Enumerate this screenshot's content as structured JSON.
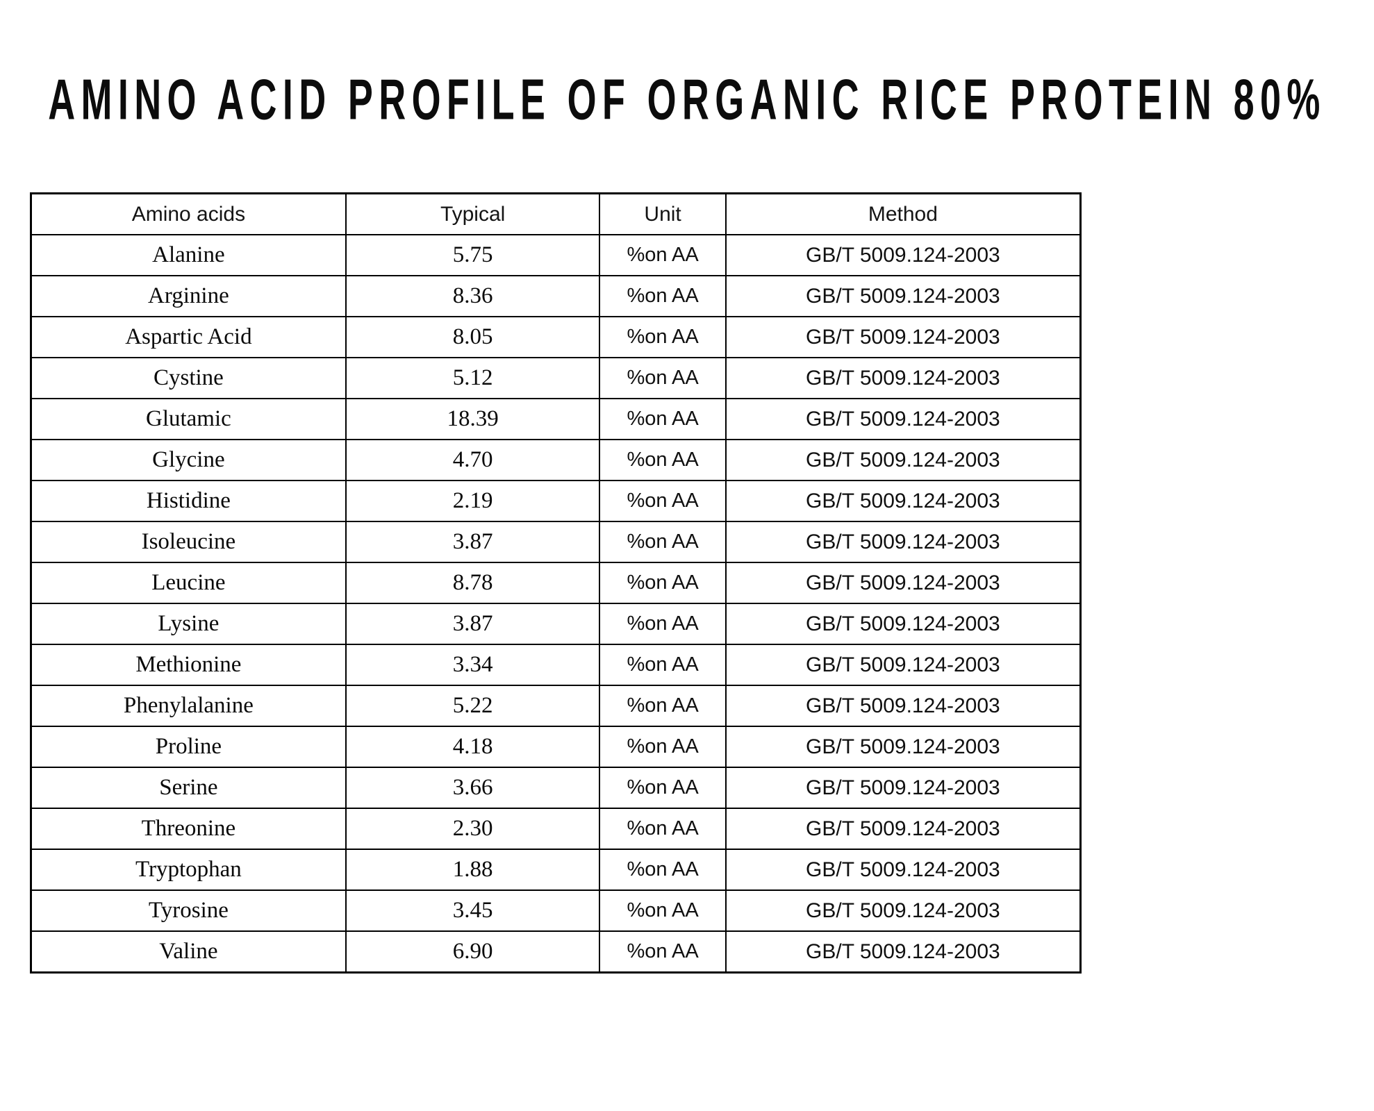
{
  "title": "AMINO ACID PROFILE OF ORGANIC RICE PROTEIN 80%",
  "table": {
    "headers": [
      "Amino acids",
      "Typical",
      "Unit",
      "Method"
    ],
    "rows": [
      {
        "name": "Alanine",
        "typical": "5.75",
        "unit": "%on AA",
        "method": "GB/T 5009.124-2003"
      },
      {
        "name": "Arginine",
        "typical": "8.36",
        "unit": "%on AA",
        "method": "GB/T 5009.124-2003"
      },
      {
        "name": "Aspartic Acid",
        "typical": "8.05",
        "unit": "%on AA",
        "method": "GB/T 5009.124-2003"
      },
      {
        "name": "Cystine",
        "typical": "5.12",
        "unit": "%on AA",
        "method": "GB/T 5009.124-2003"
      },
      {
        "name": "Glutamic",
        "typical": "18.39",
        "unit": "%on AA",
        "method": "GB/T 5009.124-2003"
      },
      {
        "name": "Glycine",
        "typical": "4.70",
        "unit": "%on AA",
        "method": "GB/T 5009.124-2003"
      },
      {
        "name": "Histidine",
        "typical": "2.19",
        "unit": "%on AA",
        "method": "GB/T 5009.124-2003"
      },
      {
        "name": "Isoleucine",
        "typical": "3.87",
        "unit": "%on AA",
        "method": "GB/T 5009.124-2003"
      },
      {
        "name": "Leucine",
        "typical": "8.78",
        "unit": "%on AA",
        "method": "GB/T 5009.124-2003"
      },
      {
        "name": "Lysine",
        "typical": "3.87",
        "unit": "%on AA",
        "method": "GB/T 5009.124-2003"
      },
      {
        "name": "Methionine",
        "typical": "3.34",
        "unit": "%on AA",
        "method": "GB/T 5009.124-2003"
      },
      {
        "name": "Phenylalanine",
        "typical": "5.22",
        "unit": "%on AA",
        "method": "GB/T 5009.124-2003"
      },
      {
        "name": "Proline",
        "typical": "4.18",
        "unit": "%on AA",
        "method": "GB/T 5009.124-2003"
      },
      {
        "name": "Serine",
        "typical": "3.66",
        "unit": "%on AA",
        "method": "GB/T 5009.124-2003"
      },
      {
        "name": "Threonine",
        "typical": "2.30",
        "unit": "%on AA",
        "method": "GB/T 5009.124-2003"
      },
      {
        "name": "Tryptophan",
        "typical": "1.88",
        "unit": "%on AA",
        "method": "GB/T 5009.124-2003"
      },
      {
        "name": "Tyrosine",
        "typical": "3.45",
        "unit": "%on AA",
        "method": "GB/T 5009.124-2003"
      },
      {
        "name": "Valine",
        "typical": "6.90",
        "unit": "%on AA",
        "method": "GB/T 5009.124-2003"
      }
    ]
  }
}
